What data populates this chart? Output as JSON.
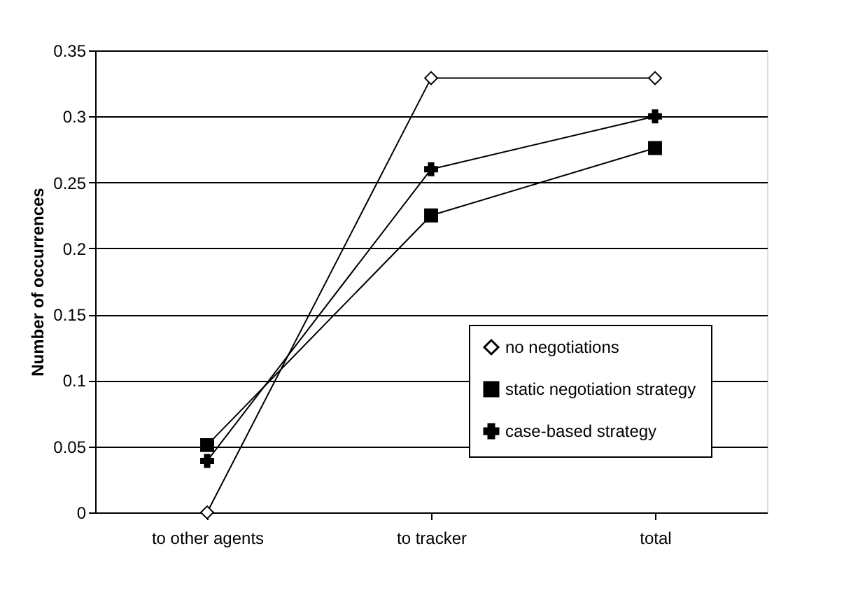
{
  "chart_data": {
    "type": "line",
    "ylabel": "Number of occurrences",
    "categories": [
      "to other agents",
      "to tracker",
      "total"
    ],
    "series": [
      {
        "name": "no negotiations",
        "color": "#000000",
        "marker": "diamond",
        "values": [
          0,
          0.329,
          0.329
        ]
      },
      {
        "name": "static negotiation strategy",
        "color": "#000000",
        "marker": "square",
        "values": [
          0.051,
          0.225,
          0.276
        ]
      },
      {
        "name": "case-based strategy",
        "color": "#000000",
        "marker": "cross",
        "values": [
          0.039,
          0.26,
          0.3
        ]
      }
    ],
    "ylim": [
      0,
      0.35
    ],
    "yticks": [
      0,
      0.05,
      0.1,
      0.15,
      0.2,
      0.25,
      0.3,
      0.35
    ],
    "grid": "y",
    "legend": "bottom right",
    "line_style": "solid"
  }
}
